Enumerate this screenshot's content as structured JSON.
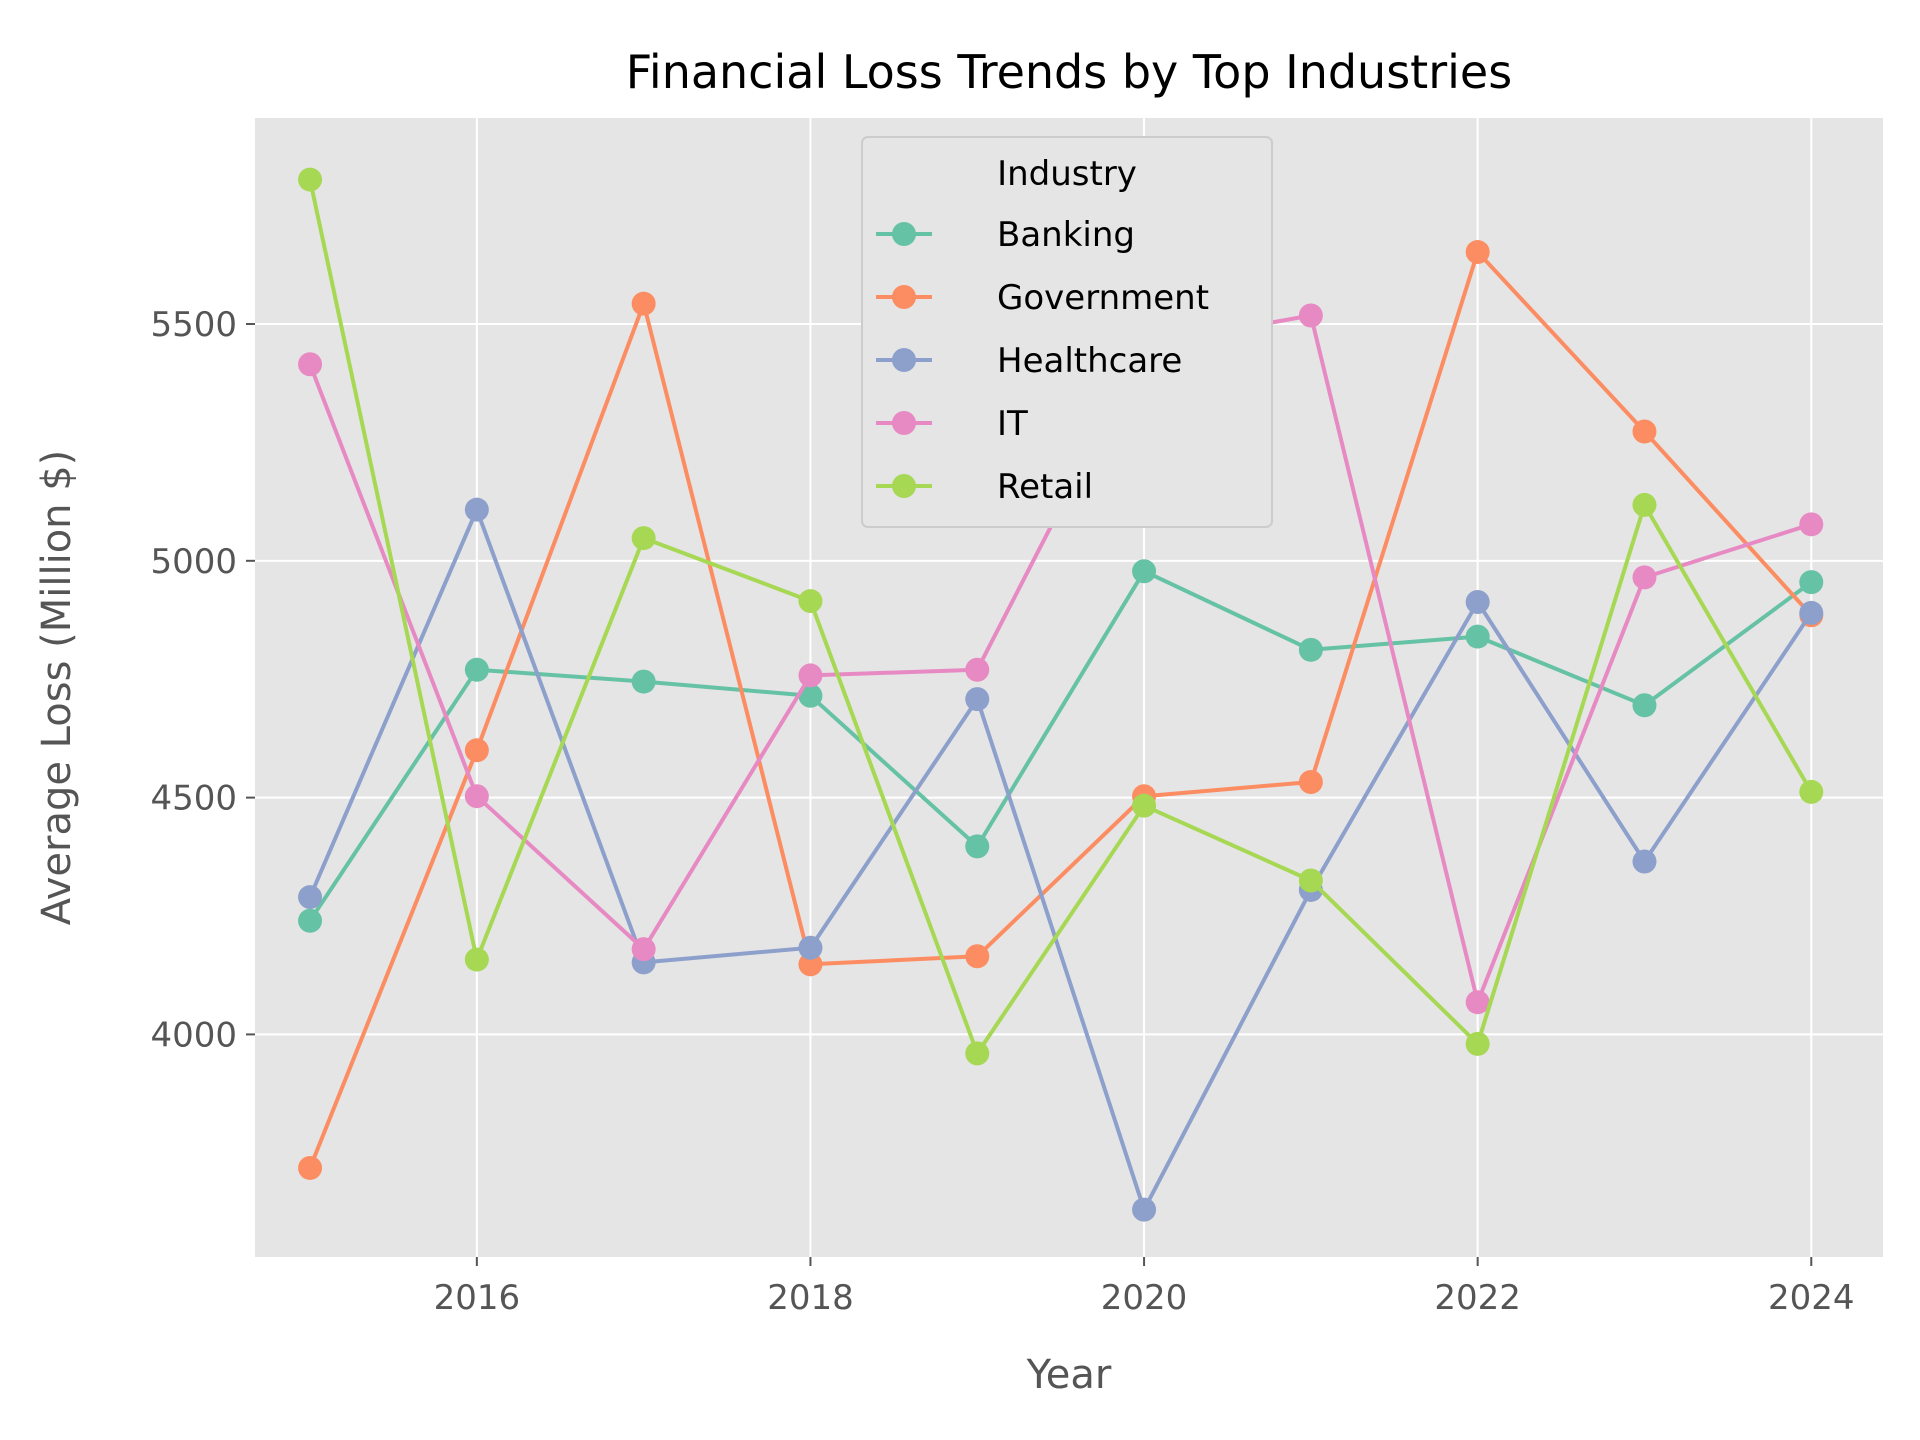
{
  "chart_data": {
    "type": "line",
    "title": "Financial Loss Trends by Top Industries",
    "xlabel": "Year",
    "ylabel": "Average Loss (Million $)",
    "x": [
      2015,
      2016,
      2017,
      2018,
      2019,
      2020,
      2021,
      2022,
      2023,
      2024
    ],
    "xlim": [
      2014.67,
      2024.43
    ],
    "ylim": [
      3530,
      5935
    ],
    "x_ticks": [
      2016,
      2018,
      2020,
      2022,
      2024
    ],
    "y_ticks": [
      4000,
      4500,
      5000,
      5500
    ],
    "grid": true,
    "legend": {
      "title": "Industry",
      "position": "top-center"
    },
    "series": [
      {
        "name": "Banking",
        "color": "#66c2a5",
        "values": [
          4240,
          4770,
          4745,
          4715,
          4397,
          4978,
          4812,
          4840,
          4695,
          4955
        ]
      },
      {
        "name": "Government",
        "color": "#fc8d62",
        "values": [
          3718,
          4600,
          5543,
          4148,
          4165,
          4503,
          4533,
          5652,
          5273,
          4885
        ]
      },
      {
        "name": "Healthcare",
        "color": "#8da0cb",
        "values": [
          4290,
          5108,
          4152,
          4183,
          4708,
          3630,
          4305,
          4913,
          4365,
          4890
        ]
      },
      {
        "name": "IT",
        "color": "#e78ac3",
        "values": [
          5415,
          4503,
          4180,
          4758,
          4770,
          5455,
          5518,
          4068,
          4965,
          5077
        ]
      },
      {
        "name": "Retail",
        "color": "#a6d854",
        "values": [
          5805,
          4158,
          5048,
          4915,
          3960,
          4483,
          4325,
          3980,
          5118,
          4512
        ]
      }
    ]
  }
}
